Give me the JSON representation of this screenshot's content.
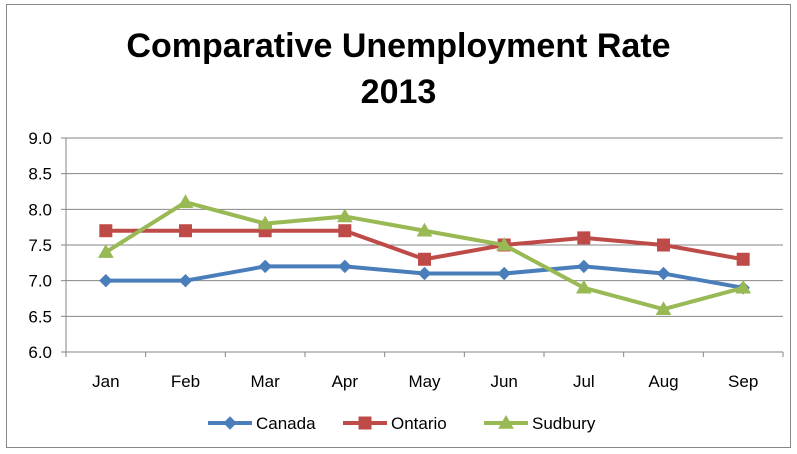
{
  "chart_data": {
    "type": "line",
    "title_lines": [
      "Comparative Unemployment Rate",
      "2013"
    ],
    "categories": [
      "Jan",
      "Feb",
      "Mar",
      "Apr",
      "May",
      "Jun",
      "Jul",
      "Aug",
      "Sep"
    ],
    "y_ticks": [
      "6.0",
      "6.5",
      "7.0",
      "7.5",
      "8.0",
      "8.5",
      "9.0"
    ],
    "ylim": [
      6.0,
      9.0
    ],
    "grid": true,
    "legend_position": "bottom",
    "series": [
      {
        "name": "Canada",
        "color": "#4a7ebb",
        "marker": "diamond",
        "values": [
          7.0,
          7.0,
          7.2,
          7.2,
          7.1,
          7.1,
          7.2,
          7.1,
          6.9
        ]
      },
      {
        "name": "Ontario",
        "color": "#be4b48",
        "marker": "square",
        "values": [
          7.7,
          7.7,
          7.7,
          7.7,
          7.3,
          7.5,
          7.6,
          7.5,
          7.3
        ]
      },
      {
        "name": "Sudbury",
        "color": "#98b954",
        "marker": "triangle",
        "values": [
          7.4,
          8.1,
          7.8,
          7.9,
          7.7,
          7.5,
          6.9,
          6.6,
          6.9
        ]
      }
    ]
  }
}
